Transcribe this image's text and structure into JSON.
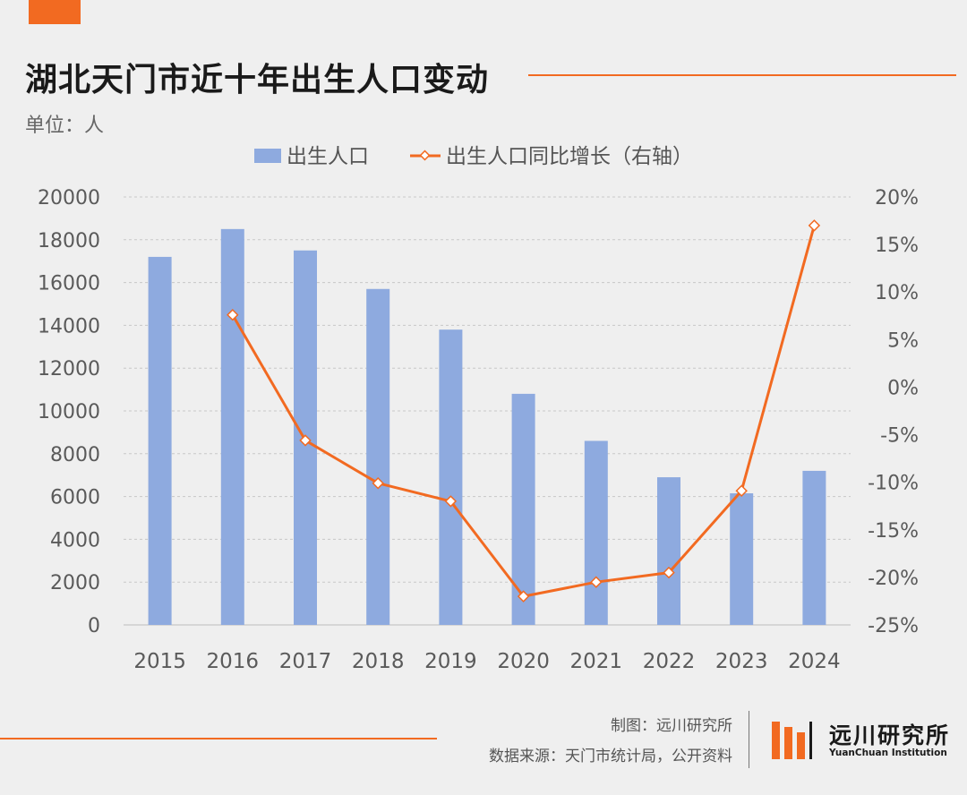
{
  "header": {
    "title": "湖北天门市近十年出生人口变动",
    "unit": "单位：人"
  },
  "footer": {
    "maker": "制图：远川研究所",
    "source": "数据来源：天门市统计局，公开资料",
    "logo_cn": "远川研究所",
    "logo_en": "YuanChuan Institution"
  },
  "colors": {
    "accent": "#f26a21",
    "bar": "#8eaadf",
    "line": "#f26a21",
    "grid": "#c8c8c8"
  },
  "chart_data": {
    "type": "bar",
    "categories": [
      "2015",
      "2016",
      "2017",
      "2018",
      "2019",
      "2020",
      "2021",
      "2022",
      "2023",
      "2024"
    ],
    "series": [
      {
        "name": "出生人口",
        "type": "bar",
        "axis": "left",
        "values": [
          17200,
          18500,
          17500,
          15700,
          13800,
          10800,
          8600,
          6900,
          6150,
          7200
        ]
      },
      {
        "name": "出生人口同比增长（右轴）",
        "type": "line",
        "axis": "right",
        "values": [
          null,
          7.6,
          -5.6,
          -10.1,
          -12.0,
          -22.0,
          -20.5,
          -19.5,
          -10.9,
          17.0
        ]
      }
    ],
    "y_left": {
      "min": 0,
      "max": 20000,
      "step": 2000,
      "ticks": [
        "0",
        "2000",
        "4000",
        "6000",
        "8000",
        "10000",
        "12000",
        "14000",
        "16000",
        "18000",
        "20000"
      ]
    },
    "y_right": {
      "min": -25,
      "max": 20,
      "step": 5,
      "ticks": [
        "-25%",
        "-20%",
        "-15%",
        "-10%",
        "-5%",
        "0%",
        "5%",
        "10%",
        "15%",
        "20%"
      ]
    },
    "legend_position": "top",
    "grid": true
  }
}
